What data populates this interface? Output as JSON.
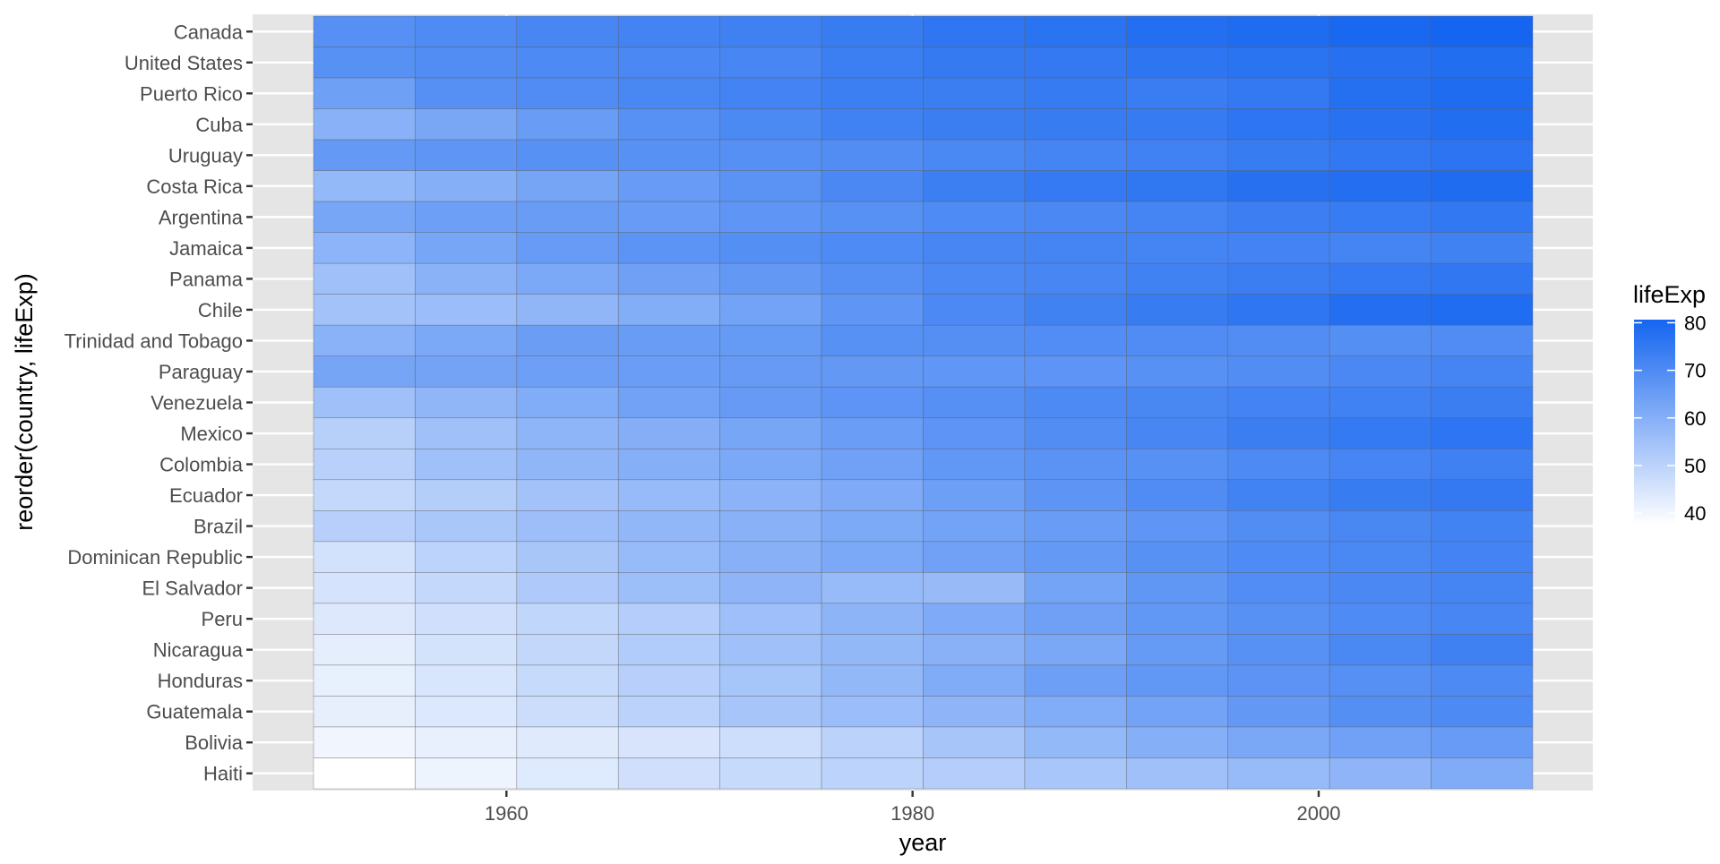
{
  "chart_data": {
    "type": "heatmap",
    "xlabel": "year",
    "ylabel": "reorder(country, lifeExp)",
    "x_years": [
      1952,
      1957,
      1962,
      1967,
      1972,
      1977,
      1982,
      1987,
      1992,
      1997,
      2002,
      2007
    ],
    "x_ticks": [
      1960,
      1980,
      2000
    ],
    "xlim": [
      1947.5,
      2013.5
    ],
    "countries_top_to_bottom": [
      "Canada",
      "United States",
      "Puerto Rico",
      "Cuba",
      "Uruguay",
      "Costa Rica",
      "Argentina",
      "Jamaica",
      "Panama",
      "Chile",
      "Trinidad and Tobago",
      "Paraguay",
      "Venezuela",
      "Mexico",
      "Colombia",
      "Ecuador",
      "Brazil",
      "Dominican Republic",
      "El Salvador",
      "Peru",
      "Nicaragua",
      "Honduras",
      "Guatemala",
      "Bolivia",
      "Haiti"
    ],
    "values": {
      "Canada": [
        68.75,
        69.96,
        71.3,
        72.13,
        72.88,
        74.21,
        75.76,
        76.86,
        77.95,
        78.61,
        79.77,
        80.65
      ],
      "United States": [
        68.44,
        69.49,
        70.21,
        70.76,
        71.34,
        73.38,
        74.65,
        75.02,
        76.09,
        76.81,
        77.31,
        78.24
      ],
      "Puerto Rico": [
        64.28,
        68.54,
        69.62,
        71.1,
        72.16,
        73.44,
        73.75,
        74.63,
        73.91,
        74.92,
        77.78,
        78.75
      ],
      "Cuba": [
        59.42,
        62.33,
        65.25,
        68.29,
        70.72,
        72.65,
        73.72,
        74.17,
        74.41,
        76.15,
        77.16,
        78.27
      ],
      "Uruguay": [
        66.07,
        67.04,
        68.25,
        68.47,
        68.67,
        69.48,
        70.81,
        71.92,
        72.75,
        74.22,
        75.31,
        76.38
      ],
      "Costa Rica": [
        57.21,
        60.03,
        62.84,
        65.42,
        67.85,
        70.75,
        73.45,
        74.75,
        75.71,
        77.26,
        78.12,
        78.78
      ],
      "Argentina": [
        62.49,
        64.4,
        65.14,
        65.63,
        67.07,
        68.48,
        69.94,
        70.77,
        71.87,
        73.28,
        74.34,
        75.32
      ],
      "Jamaica": [
        58.53,
        62.61,
        65.61,
        67.51,
        69.0,
        70.11,
        71.21,
        71.77,
        71.77,
        72.26,
        72.05,
        72.57
      ],
      "Panama": [
        55.19,
        59.2,
        61.82,
        64.07,
        66.22,
        68.68,
        70.47,
        71.52,
        72.46,
        73.74,
        74.71,
        75.54
      ],
      "Chile": [
        54.75,
        56.07,
        57.92,
        60.52,
        63.44,
        67.05,
        70.57,
        72.49,
        74.13,
        75.82,
        77.86,
        78.55
      ],
      "Trinidad and Tobago": [
        59.1,
        61.8,
        64.9,
        65.4,
        65.9,
        68.3,
        68.83,
        69.58,
        69.86,
        69.47,
        68.98,
        69.82
      ],
      "Paraguay": [
        62.65,
        63.2,
        64.36,
        64.95,
        65.81,
        66.35,
        66.87,
        67.38,
        68.23,
        69.4,
        70.76,
        71.75
      ],
      "Venezuela": [
        55.09,
        57.91,
        60.77,
        63.48,
        65.71,
        67.46,
        68.56,
        70.19,
        71.15,
        72.15,
        72.77,
        73.75
      ],
      "Mexico": [
        50.79,
        55.19,
        58.3,
        60.11,
        62.36,
        65.03,
        67.41,
        69.5,
        71.45,
        73.67,
        74.9,
        76.2
      ],
      "Colombia": [
        50.64,
        55.12,
        57.86,
        59.96,
        61.62,
        63.84,
        66.65,
        67.77,
        68.42,
        70.31,
        71.68,
        72.89
      ],
      "Ecuador": [
        48.36,
        51.36,
        54.64,
        56.68,
        58.8,
        61.31,
        64.34,
        67.23,
        69.61,
        72.31,
        74.17,
        74.99
      ],
      "Brazil": [
        50.92,
        53.29,
        55.67,
        57.63,
        59.5,
        61.49,
        63.34,
        65.21,
        67.06,
        69.39,
        71.01,
        72.39
      ],
      "Dominican Republic": [
        45.93,
        49.83,
        53.46,
        56.75,
        59.63,
        61.79,
        63.73,
        66.05,
        68.46,
        69.96,
        70.85,
        72.24
      ],
      "El Salvador": [
        45.26,
        48.57,
        52.31,
        55.86,
        58.21,
        56.7,
        56.6,
        63.15,
        66.8,
        69.54,
        70.73,
        71.88
      ],
      "Peru": [
        43.9,
        46.26,
        49.1,
        51.45,
        55.45,
        58.45,
        61.41,
        64.13,
        66.46,
        68.39,
        69.91,
        71.42
      ],
      "Nicaragua": [
        42.31,
        45.43,
        48.63,
        51.88,
        55.15,
        57.47,
        59.3,
        62.01,
        65.84,
        68.43,
        70.84,
        72.9
      ],
      "Honduras": [
        41.91,
        44.67,
        48.04,
        50.92,
        53.88,
        57.4,
        60.91,
        64.49,
        66.4,
        67.66,
        68.57,
        70.2
      ],
      "Guatemala": [
        42.02,
        44.14,
        46.95,
        50.02,
        53.74,
        56.03,
        58.14,
        60.78,
        63.37,
        66.32,
        68.98,
        70.26
      ],
      "Bolivia": [
        40.41,
        41.89,
        43.43,
        45.03,
        46.71,
        50.02,
        53.86,
        57.25,
        59.96,
        62.05,
        63.88,
        65.55
      ],
      "Haiti": [
        37.58,
        40.7,
        43.59,
        46.24,
        48.04,
        49.92,
        51.46,
        53.64,
        55.09,
        56.67,
        58.14,
        60.92
      ]
    },
    "legend": {
      "title": "lifeExp",
      "breaks": [
        80,
        70,
        60,
        50,
        40
      ],
      "range": [
        37.58,
        80.65
      ],
      "low_color": "#ffffff",
      "high_color": "#1565f0"
    },
    "grid": true,
    "legend_position": "right"
  }
}
